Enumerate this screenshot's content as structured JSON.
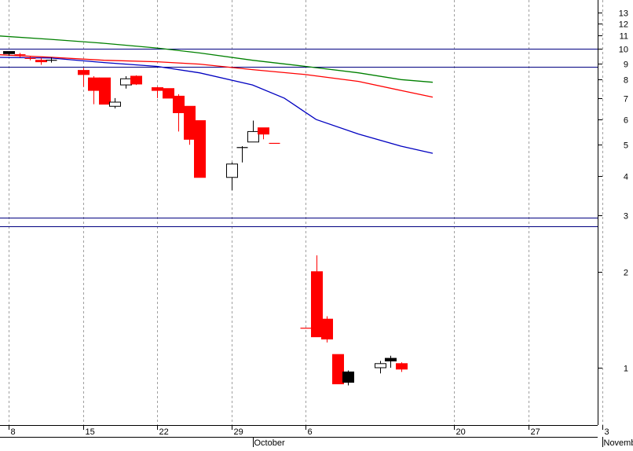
{
  "chart_data": {
    "type": "candlestick",
    "title": "",
    "xlabel": "",
    "ylabel": "",
    "y_scale": "log",
    "ylim": [
      0.78,
      14
    ],
    "grid": true,
    "y_ticks": [
      1,
      2,
      3,
      4,
      5,
      6,
      7,
      8,
      9,
      10,
      11,
      12,
      13
    ],
    "y_tick_labels": [
      "1",
      "2",
      "3",
      "4",
      "5",
      "6",
      "7",
      "8",
      "9",
      "10",
      "11",
      "12",
      "13"
    ],
    "x_day_ticks": [
      {
        "label": "8",
        "day": 0
      },
      {
        "label": "15",
        "day": 7
      },
      {
        "label": "22",
        "day": 14
      },
      {
        "label": "29",
        "day": 21
      },
      {
        "label": "6",
        "day": 28
      },
      {
        "label": "20",
        "day": 42
      },
      {
        "label": "27",
        "day": 49
      },
      {
        "label": "3",
        "day": 56
      }
    ],
    "x_month_labels": [
      {
        "label": "October",
        "day": 23
      },
      {
        "label": "November",
        "day": 56
      }
    ],
    "horizontal_lines": [
      {
        "value": 10,
        "color": "#000080"
      },
      {
        "value": 8.8,
        "color": "#000080"
      },
      {
        "value": 2.95,
        "color": "#000080"
      },
      {
        "value": 2.78,
        "color": "#000080"
      }
    ],
    "candles": [
      {
        "day": 0,
        "open": 9.65,
        "high": 9.8,
        "low": 9.5,
        "close": 9.8,
        "color": "black"
      },
      {
        "day": 1,
        "open": 9.6,
        "high": 9.7,
        "low": 9.4,
        "close": 9.55,
        "color": "red"
      },
      {
        "day": 2,
        "open": 9.35,
        "high": 9.45,
        "low": 9.2,
        "close": 9.3,
        "color": "red"
      },
      {
        "day": 3,
        "open": 9.2,
        "high": 9.35,
        "low": 8.9,
        "close": 9.1,
        "color": "red"
      },
      {
        "day": 4,
        "open": 9.2,
        "high": 9.4,
        "low": 9.05,
        "close": 9.2,
        "color": "black"
      },
      {
        "day": 7,
        "open": 8.55,
        "high": 8.7,
        "low": 7.6,
        "close": 8.3,
        "color": "red"
      },
      {
        "day": 8,
        "open": 8.1,
        "high": 8.2,
        "low": 6.7,
        "close": 7.4,
        "color": "red"
      },
      {
        "day": 9,
        "open": 8.1,
        "high": 8.1,
        "low": 6.7,
        "close": 6.7,
        "color": "red"
      },
      {
        "day": 10,
        "open": 6.6,
        "high": 7.0,
        "low": 6.5,
        "close": 6.8,
        "color": "white"
      },
      {
        "day": 11,
        "open": 7.7,
        "high": 8.2,
        "low": 7.5,
        "close": 8.05,
        "color": "white"
      },
      {
        "day": 12,
        "open": 8.2,
        "high": 8.25,
        "low": 7.7,
        "close": 7.75,
        "color": "red"
      },
      {
        "day": 14,
        "open": 7.55,
        "high": 7.6,
        "low": 7.0,
        "close": 7.4,
        "color": "red"
      },
      {
        "day": 15,
        "open": 7.5,
        "high": 7.5,
        "low": 7.0,
        "close": 7.0,
        "color": "red"
      },
      {
        "day": 16,
        "open": 7.1,
        "high": 7.2,
        "low": 5.5,
        "close": 6.3,
        "color": "red"
      },
      {
        "day": 17,
        "open": 6.6,
        "high": 6.6,
        "low": 5.0,
        "close": 5.2,
        "color": "red"
      },
      {
        "day": 18,
        "open": 5.95,
        "high": 5.95,
        "low": 3.95,
        "close": 3.95,
        "color": "red"
      },
      {
        "day": 21,
        "open": 3.95,
        "high": 4.4,
        "low": 3.6,
        "close": 4.35,
        "color": "white"
      },
      {
        "day": 22,
        "open": 4.9,
        "high": 4.95,
        "low": 4.4,
        "close": 4.9,
        "color": "black"
      },
      {
        "day": 23,
        "open": 5.1,
        "high": 5.95,
        "low": 5.1,
        "close": 5.5,
        "color": "white"
      },
      {
        "day": 24,
        "open": 5.65,
        "high": 5.65,
        "low": 5.2,
        "close": 5.4,
        "color": "red"
      },
      {
        "day": 25,
        "open": 5.05,
        "high": 5.05,
        "low": 5.05,
        "close": 5.05,
        "color": "red"
      },
      {
        "day": 28,
        "open": 1.33,
        "high": 1.33,
        "low": 1.33,
        "close": 1.33,
        "color": "red"
      },
      {
        "day": 29,
        "open": 2.0,
        "high": 2.25,
        "low": 1.25,
        "close": 1.25,
        "color": "red"
      },
      {
        "day": 30,
        "open": 1.42,
        "high": 1.45,
        "low": 1.2,
        "close": 1.23,
        "color": "red"
      },
      {
        "day": 31,
        "open": 1.1,
        "high": 1.1,
        "low": 0.89,
        "close": 0.89,
        "color": "red"
      },
      {
        "day": 32,
        "open": 0.9,
        "high": 0.98,
        "low": 0.88,
        "close": 0.97,
        "color": "black"
      },
      {
        "day": 35,
        "open": 1.0,
        "high": 1.05,
        "low": 0.96,
        "close": 1.03,
        "color": "white"
      },
      {
        "day": 36,
        "open": 1.07,
        "high": 1.09,
        "low": 1.0,
        "close": 1.05,
        "color": "black"
      },
      {
        "day": 37,
        "open": 1.03,
        "high": 1.04,
        "low": 0.97,
        "close": 0.99,
        "color": "red"
      }
    ],
    "series": [
      {
        "color": "#008000",
        "points": [
          [
            -1.5,
            11.0
          ],
          [
            4,
            10.7
          ],
          [
            9,
            10.4
          ],
          [
            14,
            10.05
          ],
          [
            18,
            9.7
          ],
          [
            23,
            9.2
          ],
          [
            28,
            8.8
          ],
          [
            33,
            8.4
          ],
          [
            37,
            8.0
          ],
          [
            40,
            7.85
          ]
        ]
      },
      {
        "color": "#ff0000",
        "points": [
          [
            -1.5,
            9.6
          ],
          [
            4,
            9.4
          ],
          [
            9,
            9.2
          ],
          [
            14,
            9.1
          ],
          [
            18,
            8.95
          ],
          [
            23,
            8.6
          ],
          [
            28,
            8.3
          ],
          [
            33,
            7.9
          ],
          [
            37,
            7.4
          ],
          [
            40,
            7.05
          ]
        ]
      },
      {
        "color": "#0000c0",
        "points": [
          [
            -1.5,
            9.4
          ],
          [
            4,
            9.35
          ],
          [
            9,
            9.05
          ],
          [
            14,
            8.8
          ],
          [
            18,
            8.4
          ],
          [
            23,
            7.7
          ],
          [
            26,
            7.0
          ],
          [
            29,
            6.0
          ],
          [
            33,
            5.4
          ],
          [
            37,
            4.95
          ],
          [
            40,
            4.7
          ]
        ]
      }
    ]
  }
}
